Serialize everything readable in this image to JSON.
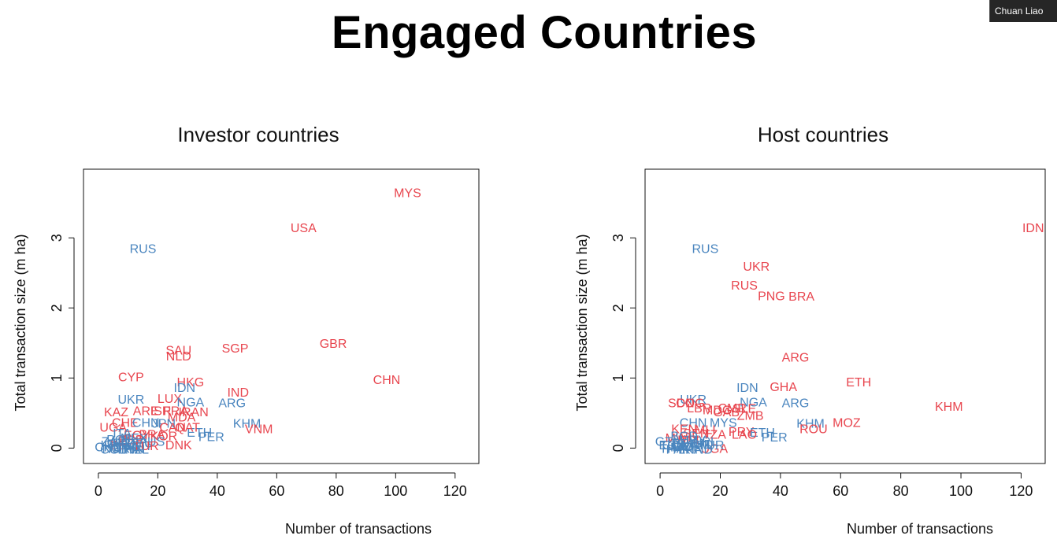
{
  "slide": {
    "title": "Engaged Countries"
  },
  "video_tile": {
    "participant_name": "Chuan Liao"
  },
  "colors": {
    "red": "#e8464f",
    "blue": "#4b86bf"
  },
  "chart_data": [
    {
      "type": "scatter",
      "title": "Investor countries",
      "xlabel": "Number of transactions",
      "ylabel": "Total transaction size (m ha)",
      "xlim": [
        -5,
        128
      ],
      "ylim": [
        -0.22,
        3.98
      ],
      "xticks": [
        0,
        20,
        40,
        60,
        80,
        100,
        120
      ],
      "yticks": [
        0,
        1,
        2,
        3
      ],
      "points": [
        {
          "label": "MYS",
          "x": 104,
          "y": 3.65,
          "color": "red"
        },
        {
          "label": "USA",
          "x": 69,
          "y": 3.15,
          "color": "red"
        },
        {
          "label": "RUS",
          "x": 15,
          "y": 2.85,
          "color": "blue"
        },
        {
          "label": "GBR",
          "x": 79,
          "y": 1.5,
          "color": "red"
        },
        {
          "label": "SGP",
          "x": 46,
          "y": 1.43,
          "color": "red"
        },
        {
          "label": "SAU",
          "x": 27,
          "y": 1.4,
          "color": "red"
        },
        {
          "label": "NLD",
          "x": 27,
          "y": 1.32,
          "color": "red"
        },
        {
          "label": "CHN",
          "x": 97,
          "y": 0.98,
          "color": "red"
        },
        {
          "label": "CYP",
          "x": 11,
          "y": 1.02,
          "color": "red"
        },
        {
          "label": "HKG",
          "x": 31,
          "y": 0.95,
          "color": "red"
        },
        {
          "label": "IDN",
          "x": 29,
          "y": 0.87,
          "color": "blue"
        },
        {
          "label": "IND",
          "x": 47,
          "y": 0.8,
          "color": "red"
        },
        {
          "label": "UKR",
          "x": 11,
          "y": 0.7,
          "color": "blue"
        },
        {
          "label": "LUX",
          "x": 24,
          "y": 0.71,
          "color": "red"
        },
        {
          "label": "NGA",
          "x": 31,
          "y": 0.66,
          "color": "blue"
        },
        {
          "label": "ARG",
          "x": 45,
          "y": 0.65,
          "color": "blue"
        },
        {
          "label": "KAZ",
          "x": 6,
          "y": 0.52,
          "color": "red"
        },
        {
          "label": "ARE",
          "x": 16,
          "y": 0.54,
          "color": "red"
        },
        {
          "label": "ISR",
          "x": 21,
          "y": 0.54,
          "color": "red"
        },
        {
          "label": "FRA",
          "x": 26,
          "y": 0.54,
          "color": "red"
        },
        {
          "label": "IRAN",
          "x": 32,
          "y": 0.52,
          "color": "red"
        },
        {
          "label": "MDA",
          "x": 28,
          "y": 0.45,
          "color": "red"
        },
        {
          "label": "KHM",
          "x": 50,
          "y": 0.36,
          "color": "blue"
        },
        {
          "label": "VNM",
          "x": 54,
          "y": 0.28,
          "color": "red"
        },
        {
          "label": "CHE",
          "x": 9,
          "y": 0.37,
          "color": "red"
        },
        {
          "label": "CHN",
          "x": 16,
          "y": 0.37,
          "color": "blue"
        },
        {
          "label": "JPN",
          "x": 22,
          "y": 0.36,
          "color": "blue"
        },
        {
          "label": "UGA",
          "x": 5,
          "y": 0.3,
          "color": "red"
        },
        {
          "label": "ETH",
          "x": 34,
          "y": 0.23,
          "color": "blue"
        },
        {
          "label": "CAN",
          "x": 25,
          "y": 0.3,
          "color": "red"
        },
        {
          "label": "QAT",
          "x": 30,
          "y": 0.3,
          "color": "red"
        },
        {
          "label": "PER",
          "x": 38,
          "y": 0.17,
          "color": "blue"
        },
        {
          "label": "BRA",
          "x": 18,
          "y": 0.2,
          "color": "red"
        },
        {
          "label": "EGY",
          "x": 13,
          "y": 0.19,
          "color": "red"
        },
        {
          "label": "KOR",
          "x": 22,
          "y": 0.18,
          "color": "red"
        },
        {
          "label": "DNK",
          "x": 27,
          "y": 0.05,
          "color": "red"
        },
        {
          "label": "ITA",
          "x": 8,
          "y": 0.22,
          "color": "blue"
        },
        {
          "label": "ESP",
          "x": 11,
          "y": 0.12,
          "color": "red"
        },
        {
          "label": "DEU",
          "x": 14,
          "y": 0.08,
          "color": "blue"
        },
        {
          "label": "AUS",
          "x": 18,
          "y": 0.1,
          "color": "blue"
        },
        {
          "label": "ZAF",
          "x": 5,
          "y": 0.1,
          "color": "blue"
        },
        {
          "label": "BEL",
          "x": 8,
          "y": 0.05,
          "color": "red"
        },
        {
          "label": "SWE",
          "x": 10,
          "y": 0.02,
          "color": "blue"
        },
        {
          "label": "NOR",
          "x": 6,
          "y": 0.0,
          "color": "blue"
        },
        {
          "label": "FIN",
          "x": 12,
          "y": 0.0,
          "color": "blue"
        },
        {
          "label": "AUT",
          "x": 14,
          "y": 0.04,
          "color": "blue"
        },
        {
          "label": "PRT",
          "x": 9,
          "y": 0.08,
          "color": "blue"
        },
        {
          "label": "IRL",
          "x": 4,
          "y": 0.05,
          "color": "blue"
        },
        {
          "label": "POL",
          "x": 7,
          "y": 0.13,
          "color": "blue"
        },
        {
          "label": "TUR",
          "x": 16,
          "y": 0.04,
          "color": "red"
        },
        {
          "label": "MEX",
          "x": 12,
          "y": 0.15,
          "color": "blue"
        },
        {
          "label": "CHL",
          "x": 3,
          "y": 0.02,
          "color": "blue"
        },
        {
          "label": "COL",
          "x": 5,
          "y": -0.01,
          "color": "blue"
        },
        {
          "label": "THA",
          "x": 10,
          "y": -0.01,
          "color": "blue"
        },
        {
          "label": "PHL",
          "x": 7,
          "y": 0.06,
          "color": "blue"
        },
        {
          "label": "NZL",
          "x": 13,
          "y": -0.01,
          "color": "blue"
        }
      ]
    },
    {
      "type": "scatter",
      "title": "Host countries",
      "xlabel": "Number of transactions",
      "ylabel": "Total transaction size (m ha)",
      "xlim": [
        -5,
        128
      ],
      "ylim": [
        -0.22,
        3.98
      ],
      "xticks": [
        0,
        20,
        40,
        60,
        80,
        100,
        120
      ],
      "yticks": [
        0,
        1,
        2,
        3
      ],
      "points": [
        {
          "label": "IDN",
          "x": 124,
          "y": 3.15,
          "color": "red"
        },
        {
          "label": "RUS",
          "x": 15,
          "y": 2.85,
          "color": "blue"
        },
        {
          "label": "UKR",
          "x": 32,
          "y": 2.6,
          "color": "red"
        },
        {
          "label": "RUS",
          "x": 28,
          "y": 2.33,
          "color": "red"
        },
        {
          "label": "PNG",
          "x": 37,
          "y": 2.18,
          "color": "red"
        },
        {
          "label": "BRA",
          "x": 47,
          "y": 2.17,
          "color": "red"
        },
        {
          "label": "ARG",
          "x": 45,
          "y": 1.3,
          "color": "red"
        },
        {
          "label": "ETH",
          "x": 66,
          "y": 0.95,
          "color": "red"
        },
        {
          "label": "GHA",
          "x": 41,
          "y": 0.88,
          "color": "red"
        },
        {
          "label": "IDN",
          "x": 29,
          "y": 0.87,
          "color": "blue"
        },
        {
          "label": "KHM",
          "x": 96,
          "y": 0.6,
          "color": "red"
        },
        {
          "label": "NGA",
          "x": 31,
          "y": 0.66,
          "color": "blue"
        },
        {
          "label": "ARG",
          "x": 45,
          "y": 0.65,
          "color": "blue"
        },
        {
          "label": "UKR",
          "x": 11,
          "y": 0.7,
          "color": "blue"
        },
        {
          "label": "MOZ",
          "x": 62,
          "y": 0.37,
          "color": "red"
        },
        {
          "label": "KHM",
          "x": 50,
          "y": 0.36,
          "color": "blue"
        },
        {
          "label": "ROU",
          "x": 51,
          "y": 0.28,
          "color": "red"
        },
        {
          "label": "SDN",
          "x": 7,
          "y": 0.65,
          "color": "red"
        },
        {
          "label": "COG",
          "x": 10,
          "y": 0.65,
          "color": "red"
        },
        {
          "label": "LBR",
          "x": 13,
          "y": 0.58,
          "color": "red"
        },
        {
          "label": "MDG",
          "x": 19,
          "y": 0.55,
          "color": "red"
        },
        {
          "label": "CMR",
          "x": 24,
          "y": 0.58,
          "color": "red"
        },
        {
          "label": "SLE",
          "x": 28,
          "y": 0.57,
          "color": "red"
        },
        {
          "label": "ZMB",
          "x": 30,
          "y": 0.47,
          "color": "red"
        },
        {
          "label": "GAB",
          "x": 22,
          "y": 0.52,
          "color": "red"
        },
        {
          "label": "CHN",
          "x": 11,
          "y": 0.37,
          "color": "blue"
        },
        {
          "label": "MYS",
          "x": 21,
          "y": 0.37,
          "color": "blue"
        },
        {
          "label": "PRY",
          "x": 27,
          "y": 0.24,
          "color": "red"
        },
        {
          "label": "ETH",
          "x": 34,
          "y": 0.23,
          "color": "blue"
        },
        {
          "label": "PER",
          "x": 38,
          "y": 0.16,
          "color": "blue"
        },
        {
          "label": "LAO",
          "x": 28,
          "y": 0.2,
          "color": "red"
        },
        {
          "label": "MLI",
          "x": 15,
          "y": 0.27,
          "color": "red"
        },
        {
          "label": "TZA",
          "x": 18,
          "y": 0.2,
          "color": "red"
        },
        {
          "label": "SEN",
          "x": 12,
          "y": 0.22,
          "color": "red"
        },
        {
          "label": "KEN",
          "x": 8,
          "y": 0.28,
          "color": "red"
        },
        {
          "label": "UGA",
          "x": 18,
          "y": 0.0,
          "color": "red"
        },
        {
          "label": "BOL",
          "x": 10,
          "y": 0.12,
          "color": "red"
        },
        {
          "label": "MWI",
          "x": 6,
          "y": 0.15,
          "color": "red"
        },
        {
          "label": "COL",
          "x": 5,
          "y": 0.05,
          "color": "blue"
        },
        {
          "label": "PHL",
          "x": 8,
          "y": 0.08,
          "color": "blue"
        },
        {
          "label": "VNM",
          "x": 12,
          "y": 0.05,
          "color": "blue"
        },
        {
          "label": "THA",
          "x": 4,
          "y": 0.0,
          "color": "blue"
        },
        {
          "label": "MMR",
          "x": 9,
          "y": 0.02,
          "color": "blue"
        },
        {
          "label": "PAK",
          "x": 6,
          "y": -0.01,
          "color": "blue"
        },
        {
          "label": "IND",
          "x": 14,
          "y": 0.06,
          "color": "blue"
        },
        {
          "label": "URY",
          "x": 11,
          "y": 0.12,
          "color": "blue"
        },
        {
          "label": "GTM",
          "x": 3,
          "y": 0.1,
          "color": "blue"
        },
        {
          "label": "NIC",
          "x": 7,
          "y": 0.02,
          "color": "blue"
        },
        {
          "label": "HND",
          "x": 13,
          "y": -0.01,
          "color": "blue"
        },
        {
          "label": "ECU",
          "x": 4,
          "y": 0.05,
          "color": "blue"
        },
        {
          "label": "LKA",
          "x": 10,
          "y": -0.01,
          "color": "blue"
        },
        {
          "label": "NPL",
          "x": 15,
          "y": 0.1,
          "color": "blue"
        },
        {
          "label": "BGD",
          "x": 8,
          "y": 0.18,
          "color": "blue"
        },
        {
          "label": "TUR",
          "x": 17,
          "y": 0.05,
          "color": "blue"
        }
      ]
    }
  ]
}
